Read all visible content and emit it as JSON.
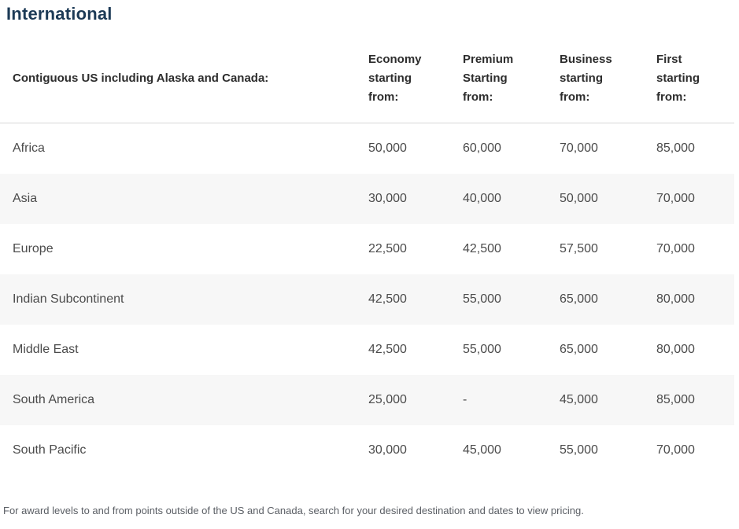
{
  "page": {
    "title": "International",
    "footnote": "For award levels to and from points outside of the US and Canada, search for your desired destination and dates to view pricing."
  },
  "table": {
    "row_header": "Contiguous US including Alaska and Canada:",
    "columns": [
      "Economy starting from:",
      "Premium Starting from:",
      "Business starting from:",
      "First starting from:"
    ],
    "rows": [
      {
        "region": "Africa",
        "economy": "50,000",
        "premium": "60,000",
        "business": "70,000",
        "first": "85,000"
      },
      {
        "region": "Asia",
        "economy": "30,000",
        "premium": "40,000",
        "business": "50,000",
        "first": "70,000"
      },
      {
        "region": "Europe",
        "economy": "22,500",
        "premium": "42,500",
        "business": "57,500",
        "first": "70,000"
      },
      {
        "region": "Indian Subcontinent",
        "economy": "42,500",
        "premium": "55,000",
        "business": "65,000",
        "first": "80,000"
      },
      {
        "region": "Middle East",
        "economy": "42,500",
        "premium": "55,000",
        "business": "65,000",
        "first": "80,000"
      },
      {
        "region": "South America",
        "economy": "25,000",
        "premium": "-",
        "business": "45,000",
        "first": "85,000"
      },
      {
        "region": "South Pacific",
        "economy": "30,000",
        "premium": "45,000",
        "business": "55,000",
        "first": "70,000"
      }
    ]
  },
  "colors": {
    "title": "#1c3a56",
    "header_text": "#2d2d2d",
    "body_text": "#4b4b4b",
    "row_stripe": "#f7f7f7",
    "divider": "#d8d8d8",
    "footnote_text": "#5a5e64"
  }
}
